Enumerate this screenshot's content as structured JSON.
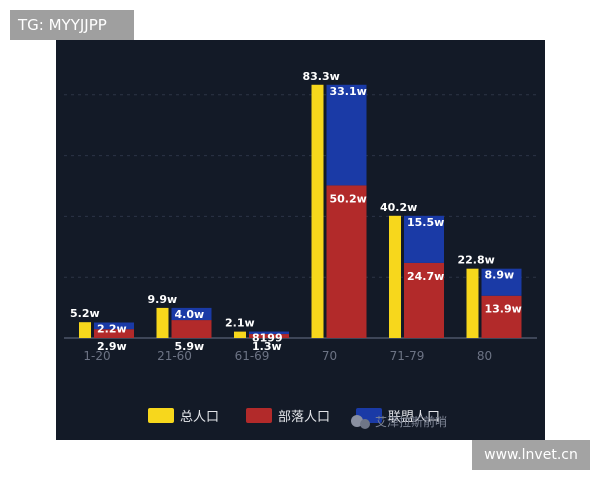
{
  "tag_badge": "TG: MYYJJPP",
  "site_badge": "www.lnvet.cn",
  "watermark": "艾泽拉斯前哨",
  "colors": {
    "background": "#131a27",
    "total": "#f7d71c",
    "horde": "#b22a2a",
    "alliance": "#1a3aa6"
  },
  "chart_data": {
    "type": "bar",
    "categories": [
      "1-20",
      "21-60",
      "61-69",
      "70",
      "71-79",
      "80"
    ],
    "series": [
      {
        "name": "总人口",
        "values": [
          5.2,
          9.9,
          2.1,
          83.3,
          40.2,
          22.8
        ],
        "labels": [
          "5.2w",
          "9.9w",
          "2.1w",
          "83.3w",
          "40.2w",
          "22.8w"
        ]
      },
      {
        "name": "部落人口",
        "values": [
          2.9,
          5.9,
          1.3,
          50.2,
          24.7,
          13.9
        ],
        "labels": [
          "2.9w",
          "5.9w",
          "1.3w",
          "50.2w",
          "24.7w",
          "13.9w"
        ]
      },
      {
        "name": "联盟人口",
        "values": [
          2.2,
          4.0,
          0.8199,
          33.1,
          15.5,
          8.9
        ],
        "labels": [
          "2.2w",
          "4.0w",
          "8199",
          "33.1w",
          "15.5w",
          "8.9w"
        ]
      }
    ],
    "stacked_series": [
      "部落人口",
      "联盟人口"
    ],
    "unit": "w",
    "ylim": [
      0,
      100
    ],
    "grid": true,
    "legend": "bottom"
  }
}
